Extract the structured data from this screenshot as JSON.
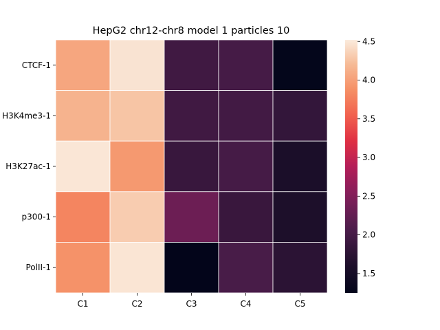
{
  "chart_data": {
    "type": "heatmap",
    "title": "HepG2 chr12-chr8 model 1 particles 10",
    "xlabel": "",
    "ylabel": "",
    "rows": [
      "CTCF-1",
      "H3K4me3-1",
      "H3K27ac-1",
      "p300-1",
      "PolII-1"
    ],
    "columns": [
      "C1",
      "C2",
      "C3",
      "C4",
      "C5"
    ],
    "values": [
      [
        4.05,
        4.47,
        1.95,
        2.0,
        1.27
      ],
      [
        4.15,
        4.27,
        1.95,
        1.97,
        1.83
      ],
      [
        4.49,
        3.95,
        1.87,
        2.0,
        1.57
      ],
      [
        3.8,
        4.32,
        2.33,
        1.88,
        1.6
      ],
      [
        3.9,
        4.48,
        1.25,
        2.03,
        1.75
      ]
    ],
    "colormap": "rocket",
    "vmin": 1.25,
    "vmax": 4.52,
    "colorbar": {
      "ticks": [
        1.5,
        2.0,
        2.5,
        3.0,
        3.5,
        4.0,
        4.5
      ],
      "tick_labels": [
        "1.5",
        "2.0",
        "2.5",
        "3.0",
        "3.5",
        "4.0",
        "4.5"
      ]
    },
    "grid": true,
    "legend": "colorbar-right"
  }
}
